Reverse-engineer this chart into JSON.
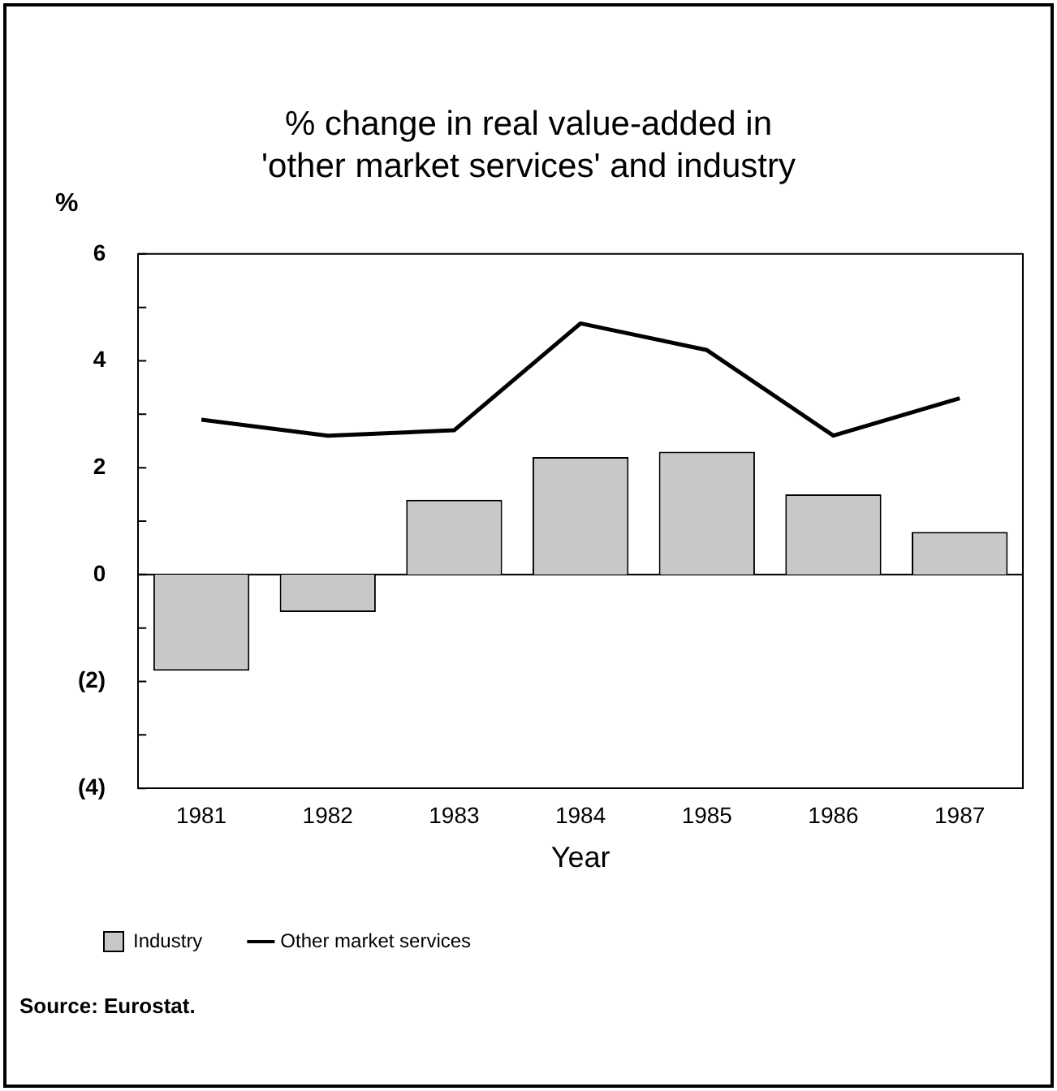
{
  "chart_data": {
    "type": "bar",
    "title": "% change in real value-added in\n'other market services' and industry",
    "ylabel": "%",
    "xlabel": "Year",
    "categories": [
      "1981",
      "1982",
      "1983",
      "1984",
      "1985",
      "1986",
      "1987"
    ],
    "series": [
      {
        "name": "Industry",
        "color": "#c8c8c8",
        "values": [
          -1.8,
          -0.7,
          1.4,
          2.2,
          2.3,
          1.5,
          0.8
        ]
      },
      {
        "name": "Other market services",
        "type": "line",
        "color": "#000000",
        "values": [
          2.9,
          2.6,
          2.7,
          4.7,
          4.2,
          2.6,
          3.3
        ]
      }
    ],
    "ylim": [
      -4,
      6
    ],
    "yticks": [
      {
        "value": -4,
        "label": "(4)"
      },
      {
        "value": -3,
        "label": null
      },
      {
        "value": -2,
        "label": "(2)"
      },
      {
        "value": -1,
        "label": null
      },
      {
        "value": 0,
        "label": "0"
      },
      {
        "value": 1,
        "label": null
      },
      {
        "value": 2,
        "label": "2"
      },
      {
        "value": 3,
        "label": null
      },
      {
        "value": 4,
        "label": "4"
      },
      {
        "value": 5,
        "label": null
      },
      {
        "value": 6,
        "label": "6"
      }
    ],
    "ref_lines": [
      {
        "axis": "y",
        "value": 0,
        "color": "#000000"
      }
    ],
    "grid": false,
    "legend": "bottom left",
    "marker": "none",
    "line_style": "solid",
    "annotations": [
      "Source: Eurostat."
    ]
  }
}
